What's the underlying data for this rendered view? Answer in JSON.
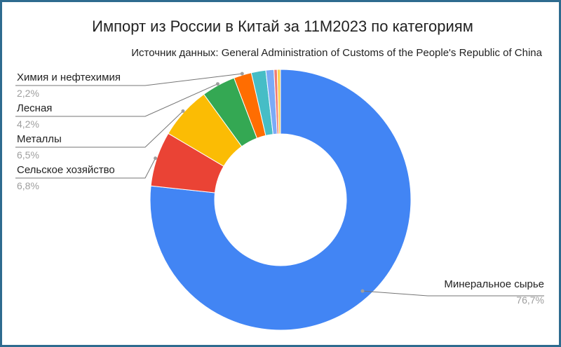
{
  "chart_data": {
    "type": "pie",
    "donut": true,
    "title": "Импорт из России в Китай за 11М2023 по категориям",
    "subtitle": "Источник данных: General Administration of Customs of the People's Republic of China",
    "slices": [
      {
        "name": "Минеральное сырье",
        "value": 76.7,
        "label": "76,7%",
        "color": "#4285f4"
      },
      {
        "name": "Сельское хозяйство",
        "value": 6.8,
        "label": "6,8%",
        "color": "#ea4335"
      },
      {
        "name": "Металлы",
        "value": 6.5,
        "label": "6,5%",
        "color": "#fbbc04"
      },
      {
        "name": "Лесная",
        "value": 4.2,
        "label": "4,2%",
        "color": "#34a853"
      },
      {
        "name": "Химия и нефтехимия",
        "value": 2.2,
        "label": "2,2%",
        "color": "#ff6d01"
      },
      {
        "name": "",
        "value": 1.8,
        "label": "",
        "color": "#46bdc6"
      },
      {
        "name": "",
        "value": 1.0,
        "label": "",
        "color": "#7baaf7"
      },
      {
        "name": "",
        "value": 0.4,
        "label": "",
        "color": "#f07b72"
      },
      {
        "name": "",
        "value": 0.4,
        "label": "",
        "color": "#fcd04f"
      }
    ]
  }
}
